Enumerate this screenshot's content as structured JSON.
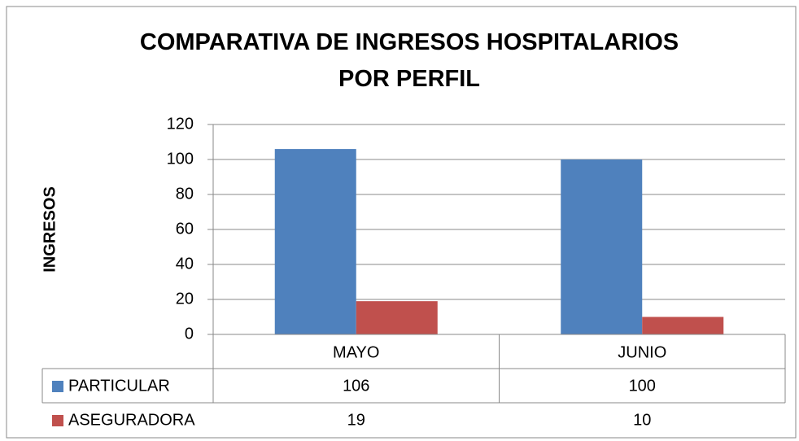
{
  "chart_data": {
    "type": "bar",
    "title": "COMPARATIVA DE INGRESOS HOSPITALARIOS POR PERFIL",
    "y_label": "INGRESOS",
    "categories": [
      "MAYO",
      "JUNIO"
    ],
    "series": [
      {
        "name": "PARTICULAR",
        "color": "#4f81bd",
        "values": [
          106,
          100
        ]
      },
      {
        "name": "ASEGURADORA",
        "color": "#c0504d",
        "values": [
          19,
          10
        ]
      }
    ],
    "ylim": [
      0,
      120
    ],
    "yticks": [
      0,
      20,
      40,
      60,
      80,
      100,
      120
    ],
    "grid": true,
    "data_table": true
  }
}
